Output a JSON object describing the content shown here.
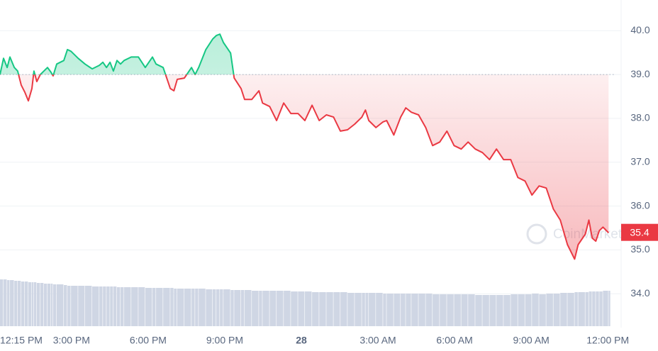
{
  "chart_data": {
    "type": "line",
    "baseline": 39.0,
    "current_price": {
      "value": 35.4,
      "label": "35.4"
    },
    "watermark": "CoinMarketCap",
    "x": [
      12.2,
      12.34,
      12.48,
      12.59,
      12.76,
      12.89,
      13.03,
      13.17,
      13.31,
      13.45,
      13.53,
      13.64,
      13.78,
      13.92,
      14.06,
      14.2,
      14.28,
      14.42,
      14.7,
      14.84,
      14.98,
      15.26,
      15.53,
      15.81,
      16.09,
      16.23,
      16.37,
      16.51,
      16.64,
      16.78,
      16.92,
      17.06,
      17.34,
      17.62,
      17.89,
      18.17,
      18.31,
      18.59,
      18.87,
      19.01,
      19.14,
      19.42,
      19.7,
      19.84,
      19.98,
      20.26,
      20.53,
      20.67,
      20.81,
      20.95,
      21.23,
      21.37,
      21.64,
      21.78,
      22.06,
      22.34,
      22.48,
      22.76,
      23.03,
      23.31,
      23.59,
      23.87,
      24.14,
      24.42,
      24.7,
      24.98,
      25.26,
      25.53,
      25.81,
      26.09,
      26.37,
      26.51,
      26.64,
      26.92,
      27.2,
      27.34,
      27.62,
      27.89,
      28.09,
      28.31,
      28.59,
      28.87,
      29.14,
      29.42,
      29.7,
      29.98,
      30.26,
      30.53,
      30.81,
      31.09,
      31.37,
      31.64,
      31.92,
      32.2,
      32.48,
      32.76,
      33.03,
      33.31,
      33.59,
      33.87,
      34.14,
      34.42,
      34.7,
      34.84,
      35.12,
      35.26,
      35.39,
      35.53,
      35.67,
      35.81,
      36.03
    ],
    "series": [
      {
        "color": "#ea3943",
        "color_up": "#16c784",
        "values": [
          39.0,
          39.37,
          39.16,
          39.4,
          39.16,
          39.08,
          38.76,
          38.6,
          38.4,
          38.68,
          39.08,
          38.84,
          39.0,
          39.08,
          39.16,
          39.05,
          38.97,
          39.24,
          39.32,
          39.57,
          39.53,
          39.37,
          39.24,
          39.13,
          39.21,
          39.28,
          39.16,
          39.28,
          39.08,
          39.32,
          39.24,
          39.32,
          39.4,
          39.4,
          39.16,
          39.4,
          39.24,
          39.16,
          38.68,
          38.63,
          38.89,
          38.92,
          39.16,
          39.0,
          39.16,
          39.57,
          39.81,
          39.89,
          39.92,
          39.73,
          39.49,
          38.92,
          38.68,
          38.43,
          38.43,
          38.63,
          38.35,
          38.27,
          37.95,
          38.35,
          38.11,
          38.11,
          37.95,
          38.3,
          37.95,
          38.08,
          38.03,
          37.71,
          37.74,
          37.87,
          38.03,
          38.19,
          37.95,
          37.79,
          37.92,
          37.95,
          37.62,
          38.03,
          38.24,
          38.14,
          38.08,
          37.79,
          37.38,
          37.46,
          37.71,
          37.38,
          37.3,
          37.46,
          37.3,
          37.22,
          37.06,
          37.3,
          37.06,
          37.06,
          36.65,
          36.57,
          36.25,
          36.46,
          36.41,
          35.93,
          35.68,
          35.12,
          34.79,
          35.12,
          35.36,
          35.68,
          35.27,
          35.2,
          35.44,
          35.52,
          35.39
        ]
      },
      {
        "type": "bar",
        "color": "#cfd6e4",
        "values": [
          66,
          66,
          65,
          65,
          64,
          64,
          63,
          63,
          62,
          62,
          62,
          61,
          61,
          60,
          60,
          60,
          59,
          59,
          58,
          57,
          57,
          57,
          57,
          56,
          56,
          56,
          56,
          56,
          56,
          55,
          55,
          55,
          55,
          55,
          54,
          54,
          54,
          54,
          54,
          53,
          53,
          53,
          53,
          53,
          53,
          52,
          52,
          52,
          52,
          52,
          51,
          51,
          51,
          51,
          50,
          50,
          50,
          50,
          50,
          50,
          49,
          49,
          49,
          48,
          48,
          48,
          48,
          48,
          47,
          47,
          47,
          47,
          47,
          47,
          46,
          46,
          46,
          46,
          46,
          46,
          46,
          46,
          45,
          45,
          45,
          45,
          45,
          45,
          44,
          44,
          44,
          44,
          44,
          45,
          45,
          45,
          46,
          45,
          46,
          46,
          47,
          47,
          48,
          48,
          48,
          49,
          49,
          49,
          49,
          50,
          50
        ]
      }
    ],
    "xlim": [
      12.2,
      36.3
    ],
    "xticks": [
      {
        "value": 12.25,
        "label": "12:15 PM"
      },
      {
        "value": 15,
        "label": "3:00 PM"
      },
      {
        "value": 18,
        "label": "6:00 PM"
      },
      {
        "value": 21,
        "label": "9:00 PM"
      },
      {
        "value": 24,
        "label": "28"
      },
      {
        "value": 27,
        "label": "3:00 AM"
      },
      {
        "value": 30,
        "label": "6:00 AM"
      },
      {
        "value": 33,
        "label": "9:00 AM"
      },
      {
        "value": 36,
        "label": "12:00 PM"
      }
    ],
    "ylim": [
      33.26,
      40.7
    ],
    "yticks": [
      {
        "value": 34,
        "label": "34.0"
      },
      {
        "value": 35,
        "label": "35.0"
      },
      {
        "value": 36,
        "label": "36.0"
      },
      {
        "value": 37,
        "label": "37.0"
      },
      {
        "value": 38,
        "label": "38.0"
      },
      {
        "value": 39,
        "label": "39.0"
      },
      {
        "value": 40,
        "label": "40.0"
      }
    ],
    "grid": true
  }
}
